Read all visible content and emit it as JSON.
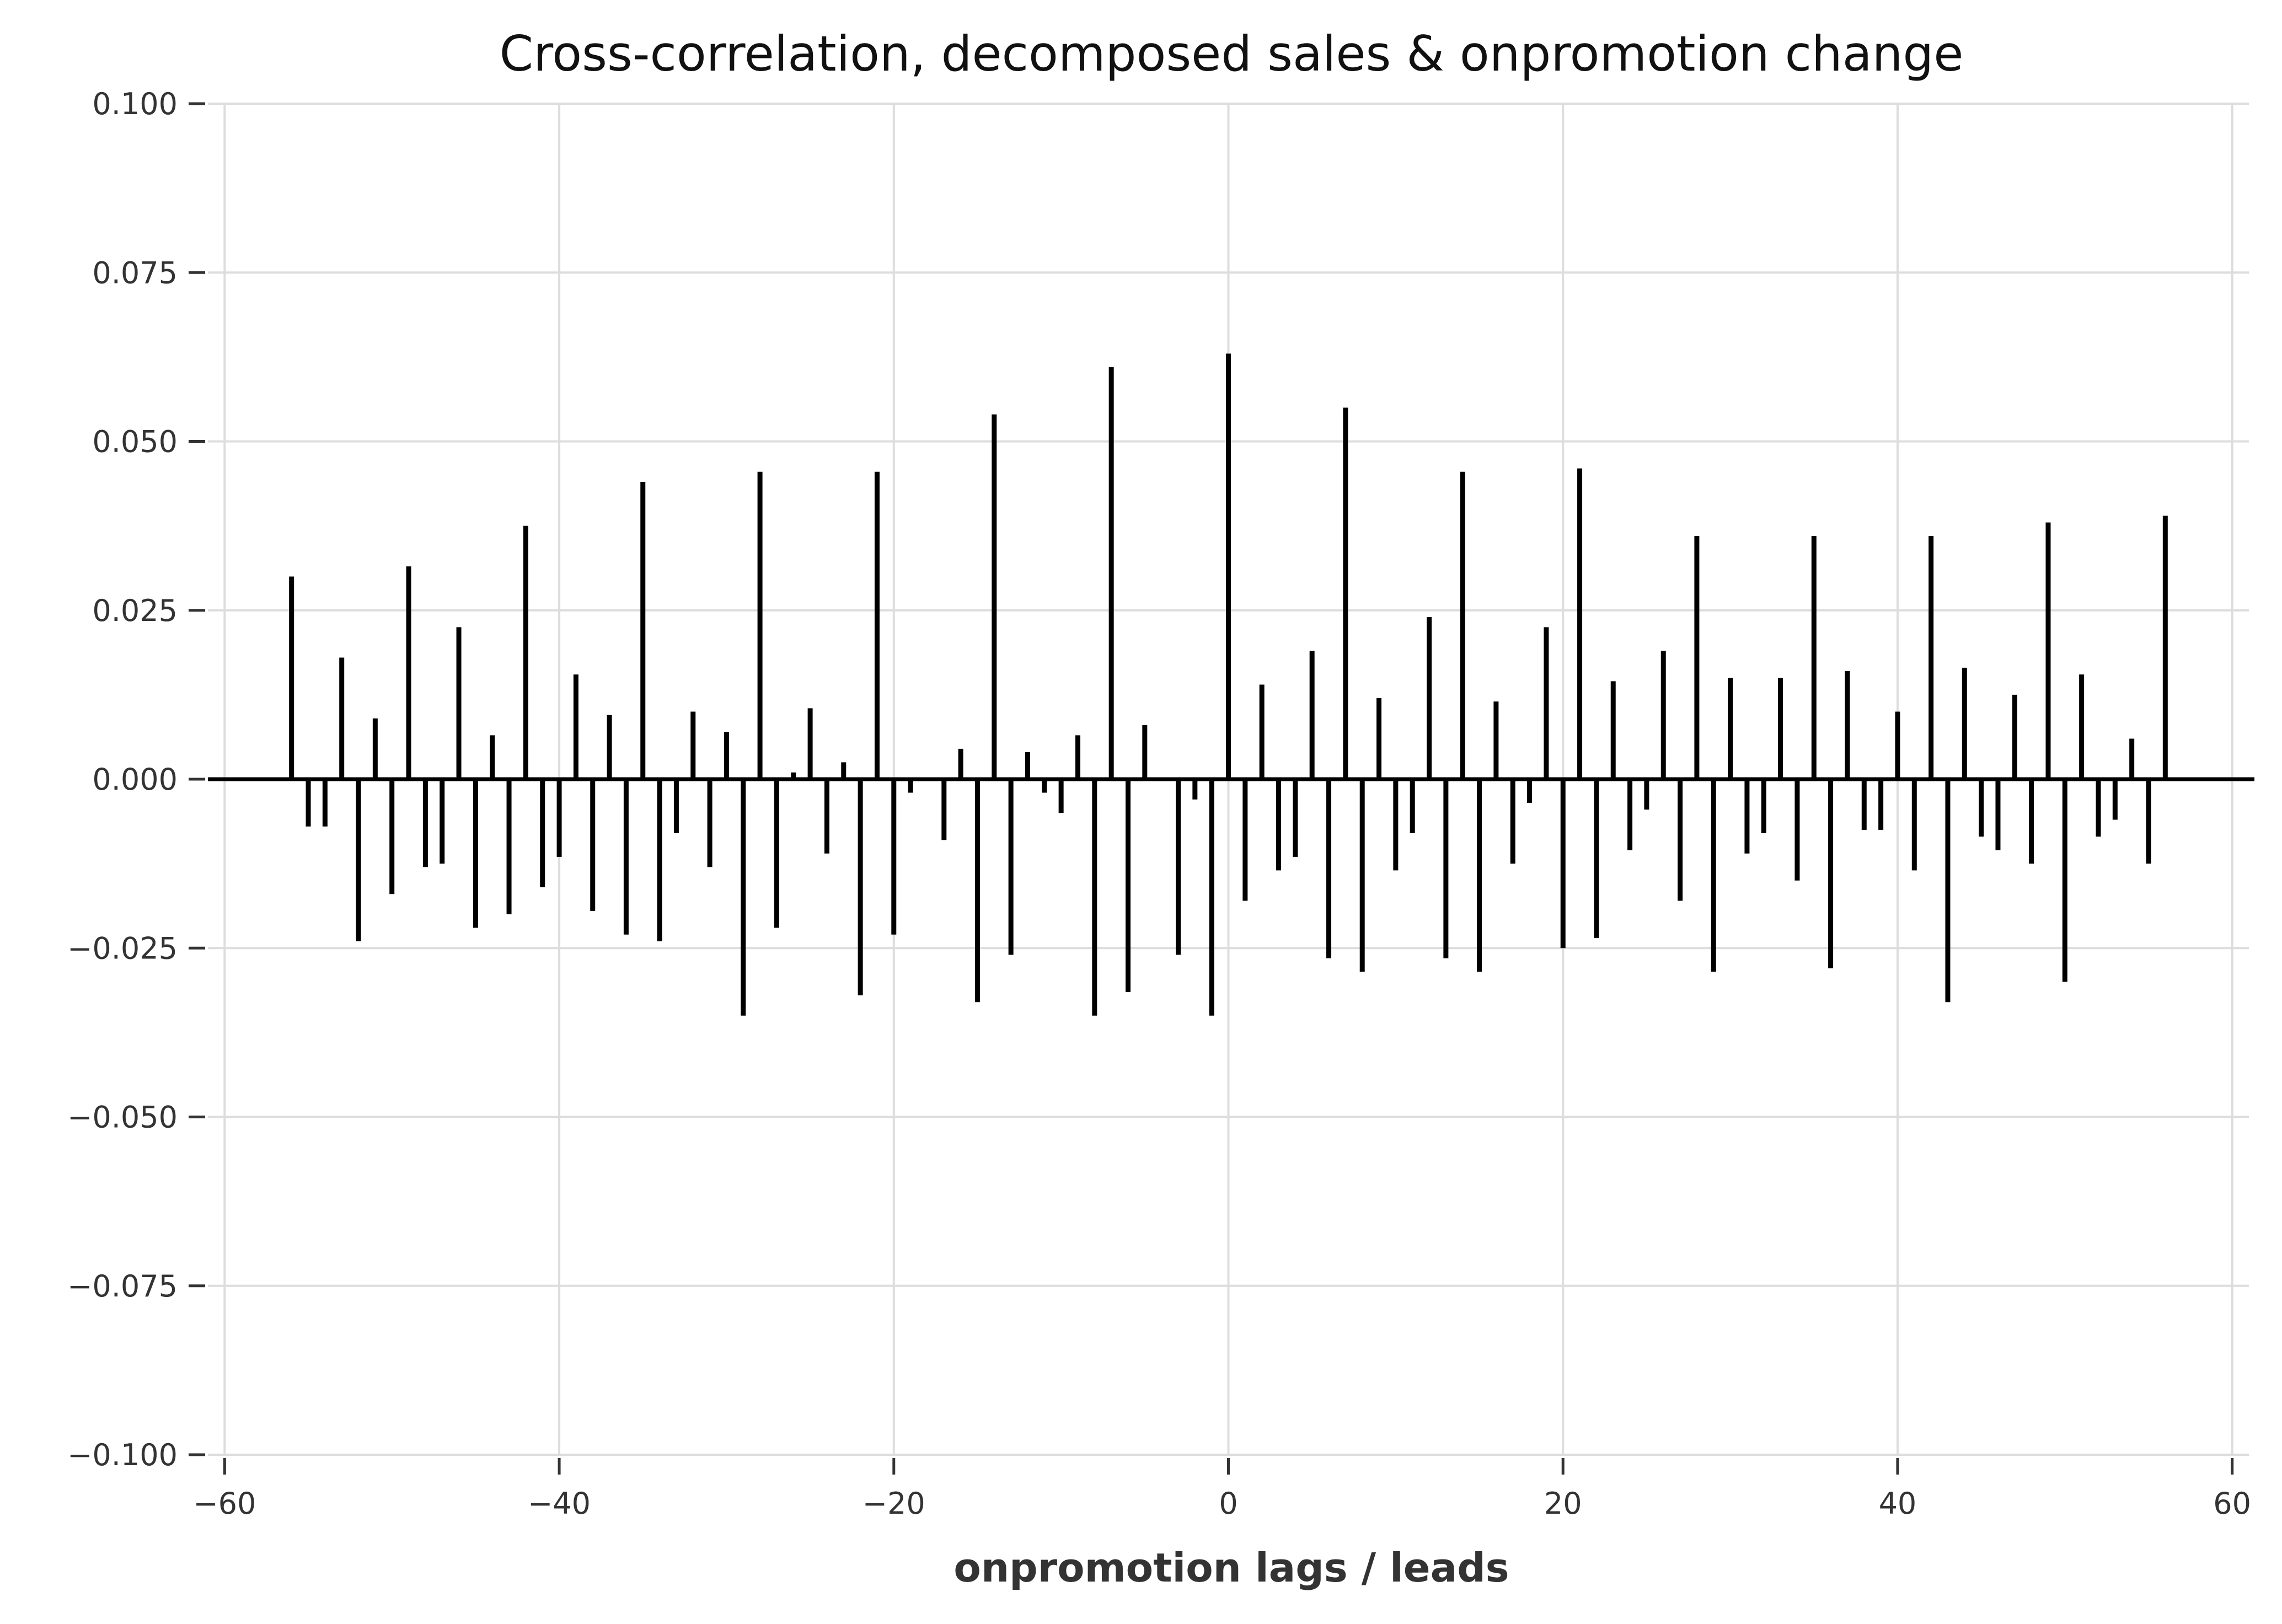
{
  "chart_data": {
    "type": "bar",
    "title": "Cross-correlation, decomposed sales & onpromotion change",
    "xlabel": "onpromotion lags / leads",
    "ylabel": "",
    "xlim": [
      -61,
      61
    ],
    "ylim": [
      -0.1,
      0.1
    ],
    "grid": true,
    "x_ticks": [
      -60,
      -40,
      -20,
      0,
      20,
      40,
      60
    ],
    "x_tick_labels": [
      "−60",
      "−40",
      "−20",
      "0",
      "20",
      "40",
      "60"
    ],
    "y_ticks": [
      -0.1,
      -0.075,
      -0.05,
      -0.025,
      0.0,
      0.025,
      0.05,
      0.075,
      0.1
    ],
    "y_tick_labels": [
      "−0.100",
      "−0.075",
      "−0.050",
      "−0.025",
      "0.000",
      "0.025",
      "0.050",
      "0.075",
      "0.100"
    ],
    "series": [
      {
        "x": [
          -56,
          -55,
          -54,
          -53,
          -52,
          -51,
          -50,
          -49,
          -48,
          -47,
          -46,
          -45,
          -44,
          -43,
          -42,
          -41,
          -40,
          -39,
          -38,
          -37,
          -36,
          -35,
          -34,
          -33,
          -32,
          -31,
          -30,
          -29,
          -28,
          -27,
          -26,
          -25,
          -24,
          -23,
          -22,
          -21,
          -20,
          -19,
          -18,
          -17,
          -16,
          -15,
          -14,
          -13,
          -12,
          -11,
          -10,
          -9,
          -8,
          -7,
          -6,
          -5,
          -4,
          -3,
          -2,
          -1,
          0,
          1,
          2,
          3,
          4,
          5,
          6,
          7,
          8,
          9,
          10,
          11,
          12,
          13,
          14,
          15,
          16,
          17,
          18,
          19,
          20,
          21,
          22,
          23,
          24,
          25,
          26,
          27,
          28,
          29,
          30,
          31,
          32,
          33,
          34,
          35,
          36,
          37,
          38,
          39,
          40,
          41,
          42,
          43,
          44,
          45,
          46,
          47,
          48,
          49,
          50,
          51,
          52,
          53,
          54,
          55,
          56
        ],
        "values": [
          0.03,
          -0.007,
          -0.007,
          0.018,
          -0.024,
          0.009,
          -0.017,
          0.0315,
          -0.013,
          -0.0125,
          0.0225,
          -0.022,
          0.0065,
          -0.02,
          0.0375,
          -0.016,
          -0.0115,
          0.0155,
          -0.0195,
          0.0095,
          -0.023,
          0.044,
          -0.024,
          -0.008,
          0.01,
          -0.013,
          0.007,
          -0.035,
          0.0455,
          -0.022,
          0.001,
          0.0105,
          -0.011,
          0.0025,
          -0.032,
          0.0455,
          -0.023,
          -0.002,
          0.0,
          -0.009,
          0.0045,
          -0.033,
          0.054,
          -0.026,
          0.004,
          -0.002,
          -0.005,
          0.0065,
          -0.035,
          0.061,
          -0.0315,
          0.008,
          0.0,
          -0.026,
          -0.003,
          -0.035,
          0.063,
          -0.018,
          0.014,
          -0.0135,
          -0.0115,
          0.019,
          -0.0265,
          0.055,
          -0.0285,
          0.012,
          -0.0135,
          -0.008,
          0.024,
          -0.0265,
          0.0455,
          -0.0285,
          0.0115,
          -0.0125,
          -0.0035,
          0.0225,
          -0.025,
          0.046,
          -0.0235,
          0.0145,
          -0.0105,
          -0.0045,
          0.019,
          -0.018,
          0.036,
          -0.0285,
          0.015,
          -0.011,
          -0.008,
          0.015,
          -0.015,
          0.036,
          -0.028,
          0.016,
          -0.0075,
          -0.0075,
          0.01,
          -0.0135,
          0.036,
          -0.033,
          0.0165,
          -0.0085,
          -0.0105,
          0.0125,
          -0.0125,
          0.038,
          -0.03,
          0.0155,
          -0.0085,
          -0.006,
          0.006,
          -0.0125,
          0.039
        ]
      }
    ],
    "bar_color": "#000000",
    "zero_line": true
  }
}
